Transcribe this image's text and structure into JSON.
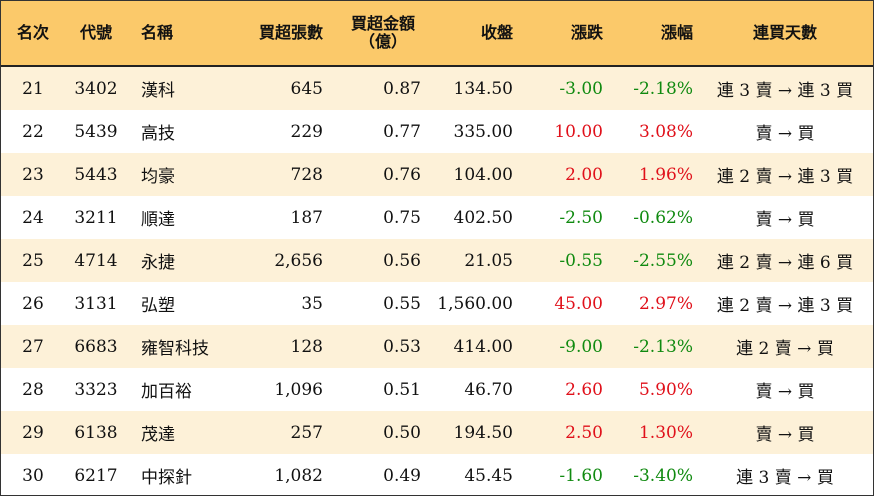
{
  "header": {
    "rank": "名次",
    "code": "代號",
    "name": "名稱",
    "net_buy_volume": "買超張數",
    "net_buy_amount_line1": "買超金額",
    "net_buy_amount_line2": "（億）",
    "close": "收盤",
    "change": "漲跌",
    "change_pct": "漲幅",
    "consecutive_days": "連買天數"
  },
  "rows": [
    {
      "rank": "21",
      "code": "3402",
      "name": "漢科",
      "volume": "645",
      "amount": "0.87",
      "close": "134.50",
      "change": "-3.00",
      "pct": "-2.18%",
      "days": "連 3 賣 → 連 3 買",
      "dir": "neg"
    },
    {
      "rank": "22",
      "code": "5439",
      "name": "高技",
      "volume": "229",
      "amount": "0.77",
      "close": "335.00",
      "change": "10.00",
      "pct": "3.08%",
      "days": "賣 → 買",
      "dir": "pos"
    },
    {
      "rank": "23",
      "code": "5443",
      "name": "均豪",
      "volume": "728",
      "amount": "0.76",
      "close": "104.00",
      "change": "2.00",
      "pct": "1.96%",
      "days": "連 2 賣 → 連 3 買",
      "dir": "pos"
    },
    {
      "rank": "24",
      "code": "3211",
      "name": "順達",
      "volume": "187",
      "amount": "0.75",
      "close": "402.50",
      "change": "-2.50",
      "pct": "-0.62%",
      "days": "賣 → 買",
      "dir": "neg"
    },
    {
      "rank": "25",
      "code": "4714",
      "name": "永捷",
      "volume": "2,656",
      "amount": "0.56",
      "close": "21.05",
      "change": "-0.55",
      "pct": "-2.55%",
      "days": "連 2 賣 → 連 6 買",
      "dir": "neg"
    },
    {
      "rank": "26",
      "code": "3131",
      "name": "弘塑",
      "volume": "35",
      "amount": "0.55",
      "close": "1,560.00",
      "change": "45.00",
      "pct": "2.97%",
      "days": "連 2 賣 → 連 3 買",
      "dir": "pos"
    },
    {
      "rank": "27",
      "code": "6683",
      "name": "雍智科技",
      "volume": "128",
      "amount": "0.53",
      "close": "414.00",
      "change": "-9.00",
      "pct": "-2.13%",
      "days": "連 2 賣 → 買",
      "dir": "neg"
    },
    {
      "rank": "28",
      "code": "3323",
      "name": "加百裕",
      "volume": "1,096",
      "amount": "0.51",
      "close": "46.70",
      "change": "2.60",
      "pct": "5.90%",
      "days": "賣 → 買",
      "dir": "pos"
    },
    {
      "rank": "29",
      "code": "6138",
      "name": "茂達",
      "volume": "257",
      "amount": "0.50",
      "close": "194.50",
      "change": "2.50",
      "pct": "1.30%",
      "days": "賣 → 買",
      "dir": "pos"
    },
    {
      "rank": "30",
      "code": "6217",
      "name": "中探針",
      "volume": "1,082",
      "amount": "0.49",
      "close": "45.45",
      "change": "-1.60",
      "pct": "-3.40%",
      "days": "連 3 賣 → 買",
      "dir": "neg"
    }
  ],
  "colors": {
    "header_bg": "#fbc96a",
    "stripe_bg": "#fdf1d8",
    "positive": "#e0101a",
    "negative": "#108a10"
  }
}
